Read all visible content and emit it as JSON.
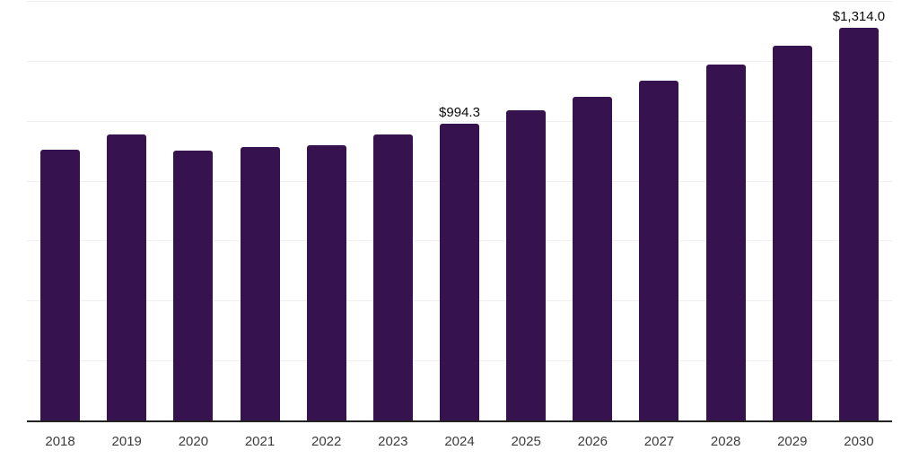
{
  "chart_data": {
    "type": "bar",
    "title": "",
    "xlabel": "",
    "ylabel": "",
    "categories": [
      "2018",
      "2019",
      "2020",
      "2021",
      "2022",
      "2023",
      "2024",
      "2025",
      "2026",
      "2027",
      "2028",
      "2029",
      "2030"
    ],
    "values": [
      906,
      956,
      903,
      915,
      921,
      957,
      994.3,
      1038,
      1083,
      1137,
      1190,
      1253,
      1314
    ],
    "point_labels": [
      "",
      "",
      "",
      "",
      "",
      "",
      "$994.3",
      "",
      "",
      "",
      "",
      "",
      "$1,314.0"
    ],
    "ylim": [
      0,
      1400
    ],
    "grid_step": 200,
    "grid_visible": true,
    "y_tick_labels_visible": false,
    "legend": "none",
    "colors": {
      "bar": "#36134f",
      "grid": "#efeff0",
      "axis": "#222222",
      "tick_label": "#3d3d3d",
      "data_label": "#0a0a0a",
      "background": "#ffffff"
    }
  }
}
